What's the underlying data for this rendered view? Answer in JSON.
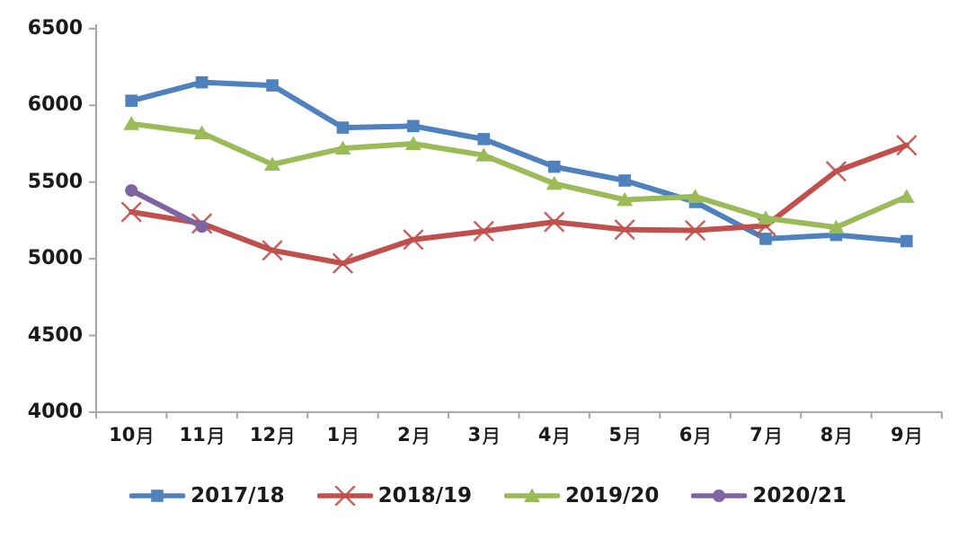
{
  "chart_data": {
    "type": "line",
    "title": "",
    "xlabel": "",
    "ylabel": "",
    "categories": [
      "10月",
      "11月",
      "12月",
      "1月",
      "2月",
      "3月",
      "4月",
      "5月",
      "6月",
      "7月",
      "8月",
      "9月"
    ],
    "series": [
      {
        "name": "2017/18",
        "color": "#4F81BD",
        "marker": "square",
        "values": [
          6030,
          6150,
          6130,
          5855,
          5865,
          5780,
          5600,
          5510,
          5370,
          5130,
          5155,
          5115
        ]
      },
      {
        "name": "2018/19",
        "color": "#C0504D",
        "marker": "x",
        "values": [
          5305,
          5230,
          5055,
          4970,
          5125,
          5180,
          5240,
          5190,
          5185,
          5215,
          5570,
          5740
        ]
      },
      {
        "name": "2019/20",
        "color": "#9BBB59",
        "marker": "triangle",
        "values": [
          5880,
          5820,
          5615,
          5720,
          5750,
          5675,
          5490,
          5385,
          5405,
          5265,
          5205,
          5405
        ]
      },
      {
        "name": "2020/21",
        "color": "#8064A2",
        "marker": "circle",
        "values": [
          5445,
          5210,
          null,
          null,
          null,
          null,
          null,
          null,
          null,
          null,
          null,
          null
        ]
      }
    ],
    "ylim": [
      4000,
      6500
    ],
    "ytick_interval": 500,
    "yticks": [
      "6500",
      "6000",
      "5500",
      "5000",
      "4500",
      "4000"
    ],
    "grid": false,
    "legend_position": "bottom",
    "axis_color": "#A6A6A6",
    "text_color": "#1a1a1a"
  }
}
